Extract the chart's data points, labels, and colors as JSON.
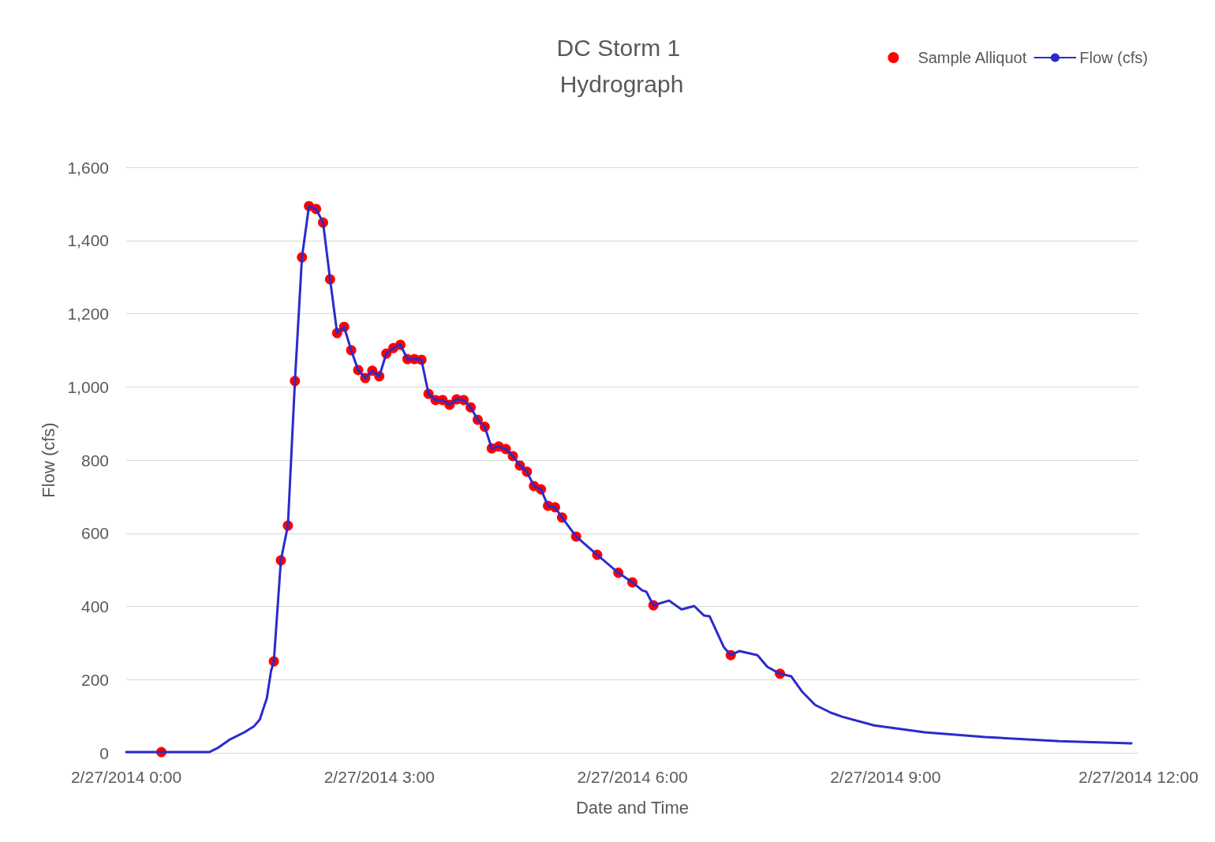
{
  "chart_data": {
    "type": "line",
    "title": "DC Storm 1 Hydrograph",
    "xlabel": "Date and Time",
    "ylabel": "Flow (cfs)",
    "xlim": [
      "2014-02-27T00:00",
      "2014-02-27T12:00"
    ],
    "xticks": [
      {
        "value": "2014-02-27T00:00",
        "label": "2/27/2014 0:00"
      },
      {
        "value": "2014-02-27T03:00",
        "label": "2/27/2014 3:00"
      },
      {
        "value": "2014-02-27T06:00",
        "label": "2/27/2014 6:00"
      },
      {
        "value": "2014-02-27T09:00",
        "label": "2/27/2014 9:00"
      },
      {
        "value": "2014-02-27T12:00",
        "label": "2/27/2014 12:00"
      }
    ],
    "ylim": [
      0,
      1600
    ],
    "yticks": [
      0,
      200,
      400,
      600,
      800,
      {
        "value": 1000,
        "label": "1,000"
      },
      {
        "value": 1200,
        "label": "1,200"
      },
      {
        "value": 1400,
        "label": "1,400"
      },
      {
        "value": 1600,
        "label": "1,600"
      }
    ],
    "grid": "y",
    "legend": "top right",
    "series": [
      {
        "name": "Sample Alliquot",
        "type": "scatter",
        "marker": "circle",
        "color": "#ff0000",
        "x": [
          "2014-02-27T00:25",
          "2014-02-27T01:45",
          "2014-02-27T01:50",
          "2014-02-27T01:55",
          "2014-02-27T02:00",
          "2014-02-27T02:05",
          "2014-02-27T02:10",
          "2014-02-27T02:15",
          "2014-02-27T02:20",
          "2014-02-27T02:25",
          "2014-02-27T02:30",
          "2014-02-27T02:35",
          "2014-02-27T02:40",
          "2014-02-27T02:45",
          "2014-02-27T02:50",
          "2014-02-27T02:55",
          "2014-02-27T03:00",
          "2014-02-27T03:05",
          "2014-02-27T03:10",
          "2014-02-27T03:15",
          "2014-02-27T03:20",
          "2014-02-27T03:25",
          "2014-02-27T03:30",
          "2014-02-27T03:35",
          "2014-02-27T03:40",
          "2014-02-27T03:45",
          "2014-02-27T03:50",
          "2014-02-27T03:55",
          "2014-02-27T04:00",
          "2014-02-27T04:05",
          "2014-02-27T04:10",
          "2014-02-27T04:15",
          "2014-02-27T04:20",
          "2014-02-27T04:25",
          "2014-02-27T04:30",
          "2014-02-27T04:35",
          "2014-02-27T04:40",
          "2014-02-27T04:45",
          "2014-02-27T04:50",
          "2014-02-27T04:55",
          "2014-02-27T05:00",
          "2014-02-27T05:05",
          "2014-02-27T05:10",
          "2014-02-27T05:20",
          "2014-02-27T05:35",
          "2014-02-27T05:50",
          "2014-02-27T06:00",
          "2014-02-27T06:15",
          "2014-02-27T07:10",
          "2014-02-27T07:45"
        ],
        "values": [
          2,
          250,
          526,
          621,
          1016,
          1354,
          1494,
          1486,
          1449,
          1294,
          1147,
          1164,
          1100,
          1046,
          1024,
          1044,
          1029,
          1091,
          1106,
          1115,
          1076,
          1076,
          1074,
          981,
          964,
          964,
          951,
          966,
          964,
          944,
          910,
          891,
          832,
          837,
          830,
          811,
          785,
          768,
          729,
          720,
          675,
          671,
          643,
          591,
          541,
          492,
          466,
          403,
          267,
          216
        ]
      },
      {
        "name": "Flow (cfs)",
        "marker": "none",
        "line_style": "solid",
        "color": "#2b2bcc",
        "x": [
          "2014-02-27T00:00",
          "2014-02-27T00:59",
          "2014-02-27T01:05",
          "2014-02-27T01:14",
          "2014-02-27T01:24",
          "2014-02-27T01:31",
          "2014-02-27T01:35",
          "2014-02-27T01:40",
          "2014-02-27T01:43",
          "2014-02-27T01:45",
          "2014-02-27T01:50",
          "2014-02-27T01:55",
          "2014-02-27T02:00",
          "2014-02-27T02:05",
          "2014-02-27T02:10",
          "2014-02-27T02:15",
          "2014-02-27T02:20",
          "2014-02-27T02:25",
          "2014-02-27T02:30",
          "2014-02-27T02:35",
          "2014-02-27T02:40",
          "2014-02-27T02:45",
          "2014-02-27T02:50",
          "2014-02-27T02:55",
          "2014-02-27T03:00",
          "2014-02-27T03:05",
          "2014-02-27T03:10",
          "2014-02-27T03:15",
          "2014-02-27T03:20",
          "2014-02-27T03:25",
          "2014-02-27T03:30",
          "2014-02-27T03:35",
          "2014-02-27T03:40",
          "2014-02-27T03:45",
          "2014-02-27T03:50",
          "2014-02-27T03:55",
          "2014-02-27T04:00",
          "2014-02-27T04:05",
          "2014-02-27T04:10",
          "2014-02-27T04:15",
          "2014-02-27T04:20",
          "2014-02-27T04:25",
          "2014-02-27T04:30",
          "2014-02-27T04:35",
          "2014-02-27T04:40",
          "2014-02-27T04:45",
          "2014-02-27T04:50",
          "2014-02-27T04:55",
          "2014-02-27T05:00",
          "2014-02-27T05:05",
          "2014-02-27T05:10",
          "2014-02-27T05:20",
          "2014-02-27T05:35",
          "2014-02-27T05:50",
          "2014-02-27T06:00",
          "2014-02-27T06:07",
          "2014-02-27T06:10",
          "2014-02-27T06:15",
          "2014-02-27T06:26",
          "2014-02-27T06:35",
          "2014-02-27T06:44",
          "2014-02-27T06:51",
          "2014-02-27T06:55",
          "2014-02-27T07:05",
          "2014-02-27T07:10",
          "2014-02-27T07:16",
          "2014-02-27T07:29",
          "2014-02-27T07:36",
          "2014-02-27T07:45",
          "2014-02-27T07:53",
          "2014-02-27T08:01",
          "2014-02-27T08:10",
          "2014-02-27T08:21",
          "2014-02-27T08:29",
          "2014-02-27T08:52",
          "2014-02-27T09:28",
          "2014-02-27T10:11",
          "2014-02-27T11:04",
          "2014-02-27T11:55"
        ],
        "values": [
          2,
          2,
          13,
          37,
          56,
          73,
          91,
          149,
          224,
          250,
          526,
          621,
          1016,
          1354,
          1494,
          1486,
          1449,
          1294,
          1147,
          1164,
          1100,
          1046,
          1024,
          1044,
          1029,
          1091,
          1106,
          1115,
          1076,
          1076,
          1074,
          981,
          964,
          964,
          951,
          966,
          964,
          944,
          910,
          891,
          832,
          837,
          830,
          811,
          785,
          768,
          729,
          720,
          675,
          671,
          643,
          591,
          541,
          492,
          466,
          444,
          440,
          403,
          416,
          392,
          401,
          375,
          373,
          289,
          267,
          278,
          267,
          235,
          216,
          209,
          166,
          131,
          110,
          99,
          75,
          56,
          43,
          32,
          26
        ]
      }
    ]
  }
}
